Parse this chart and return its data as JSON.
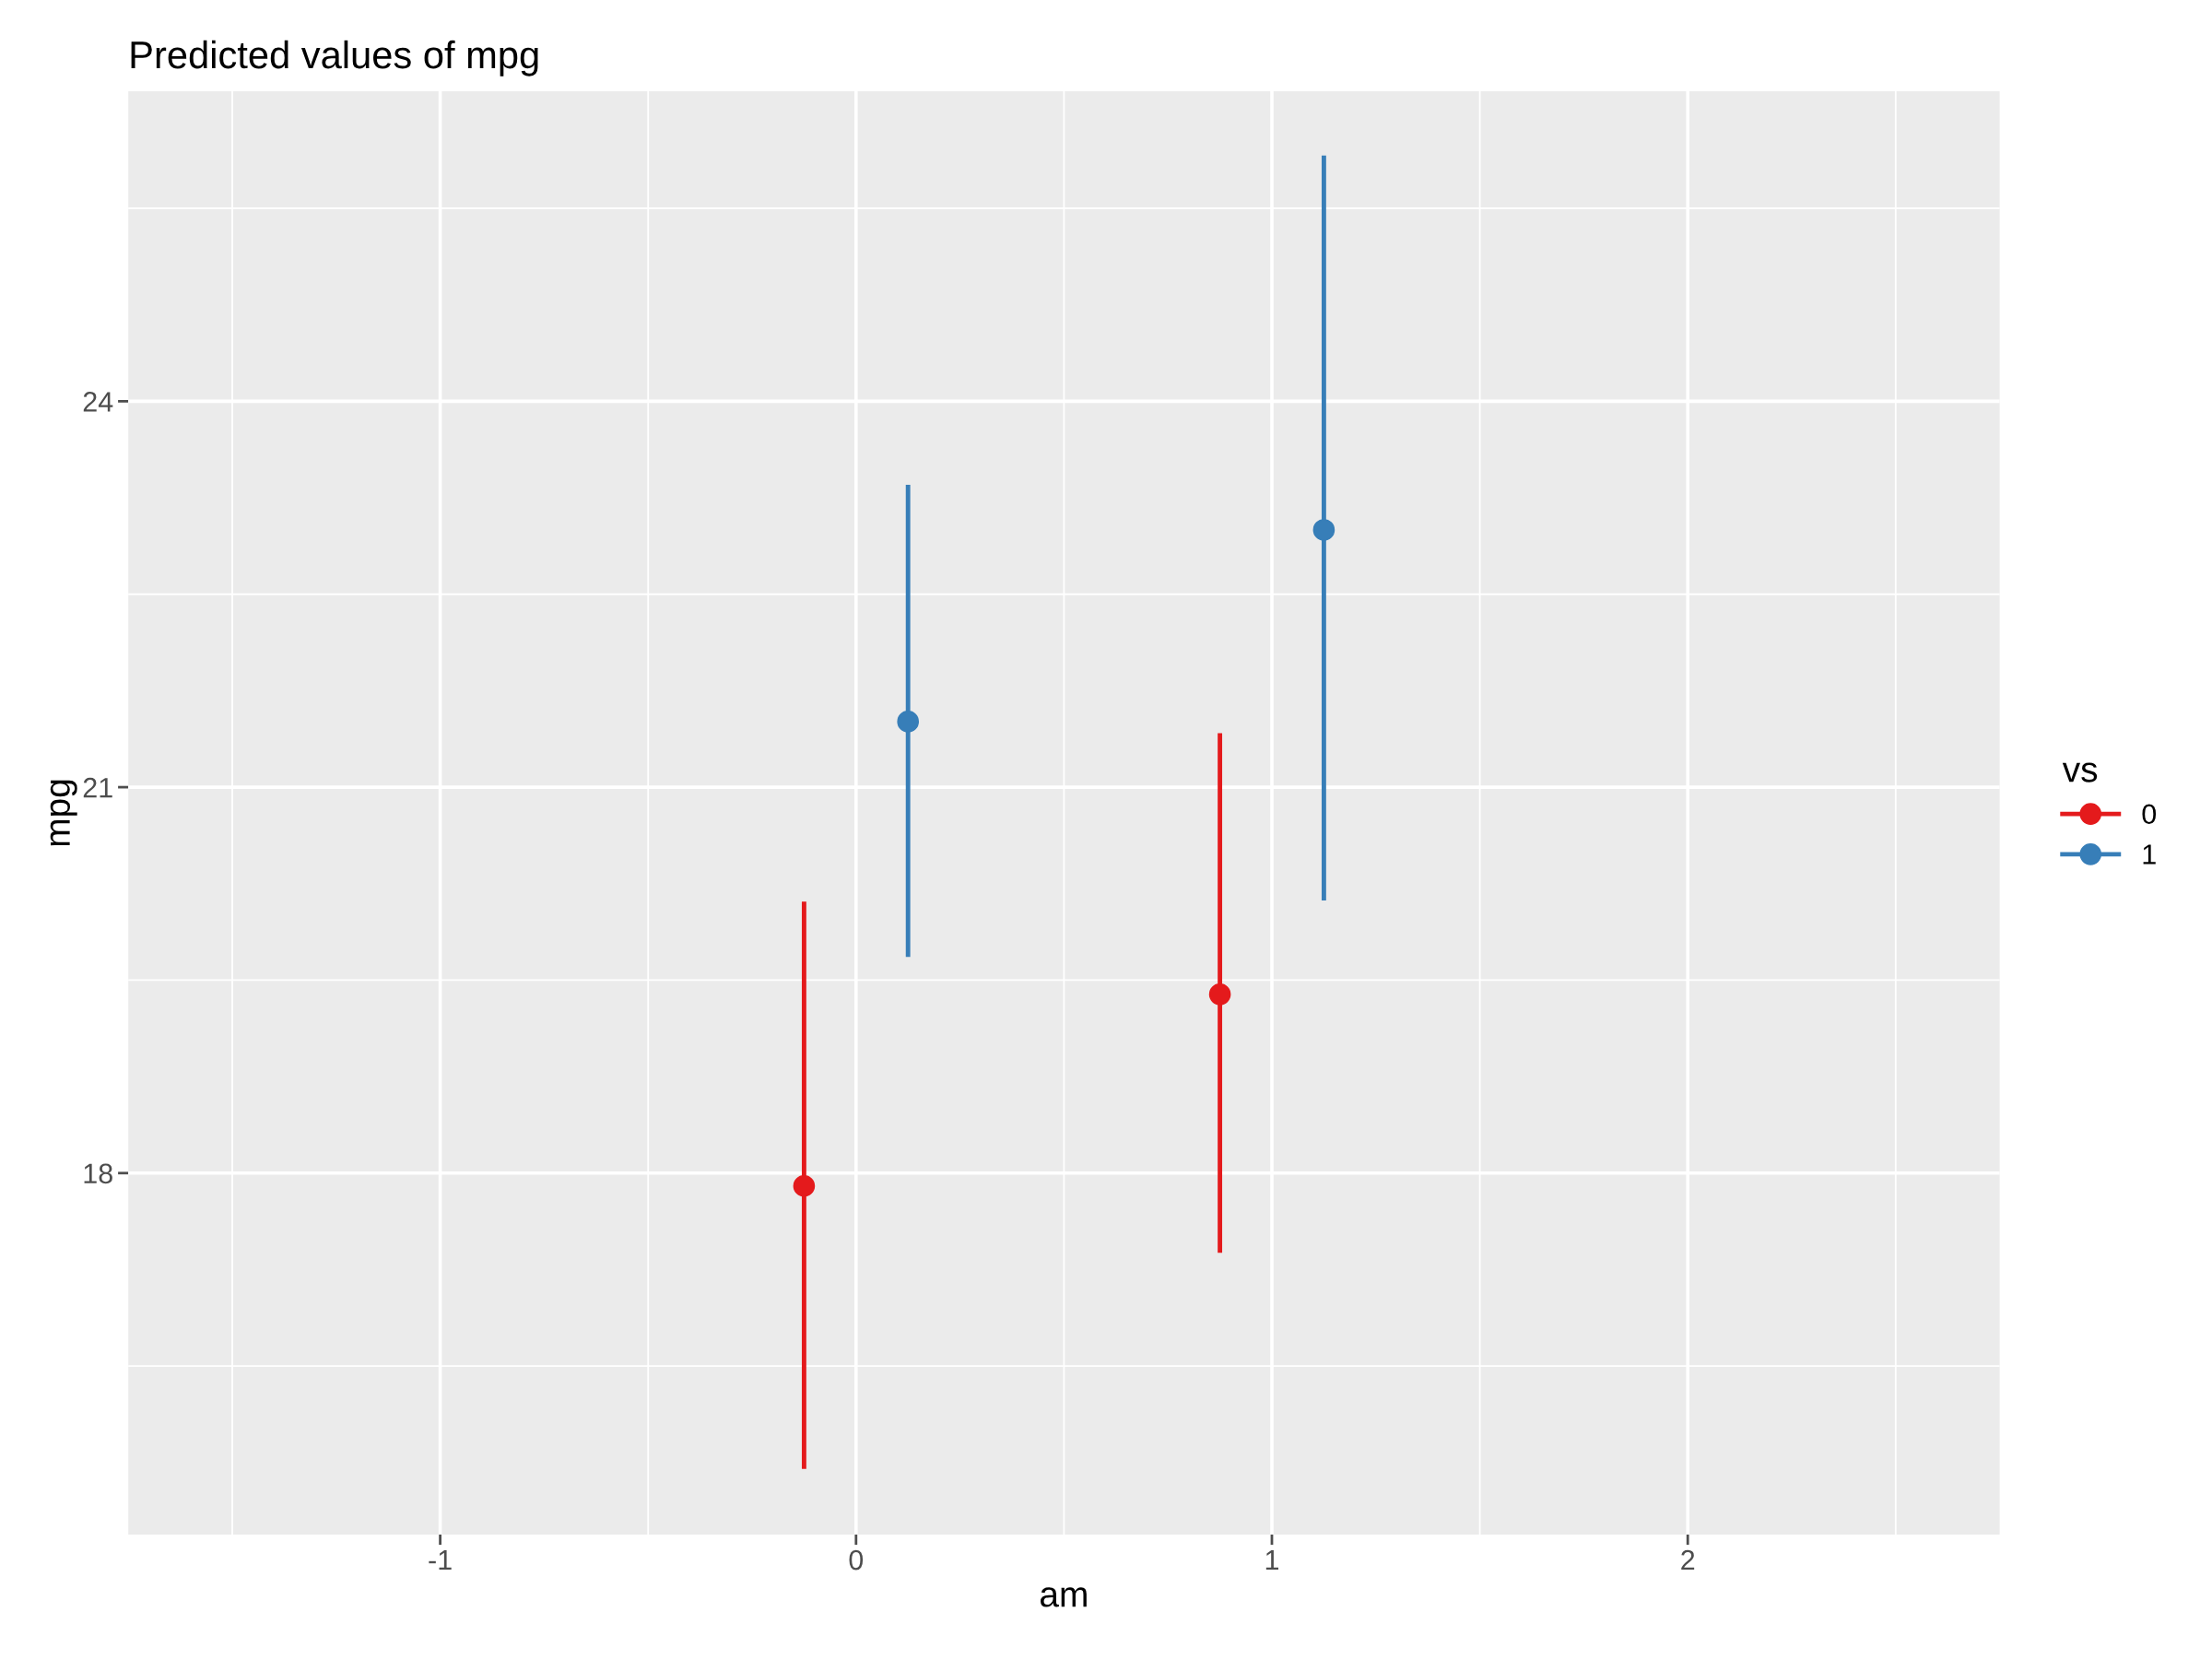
{
  "chart_data": {
    "type": "scatter",
    "title": "Predicted values of mpg",
    "xlabel": "am",
    "ylabel": "mpg",
    "legend_title": "vs",
    "series": [
      {
        "name": "0",
        "color": "#e41a1c",
        "x": [
          -0.125,
          0.875
        ],
        "values": [
          17.9,
          19.39
        ],
        "errors": [
          [
            15.7,
            20.11
          ],
          [
            17.38,
            21.42
          ]
        ]
      },
      {
        "name": "1",
        "color": "#377eb8",
        "x": [
          0.125,
          1.125
        ],
        "values": [
          21.51,
          23.0
        ],
        "errors": [
          [
            19.68,
            23.35
          ],
          [
            20.12,
            25.91
          ]
        ]
      }
    ],
    "xlim": [
      -1.75,
      2.75
    ],
    "xticks": [
      -1,
      0,
      1,
      2
    ],
    "ylim": [
      15.19,
      26.41
    ],
    "yticks": [
      18,
      21,
      24
    ],
    "grid": true,
    "legend": "right",
    "marker": "circle"
  }
}
